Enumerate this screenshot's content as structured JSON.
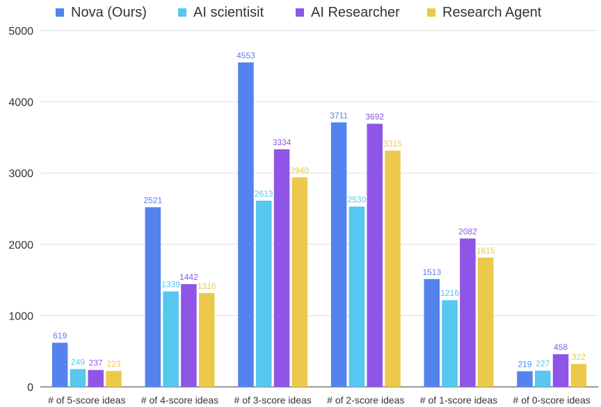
{
  "chart_data": {
    "type": "bar",
    "categories": [
      "# of 5-score ideas",
      "# of 4-score ideas",
      "# of 3-score ideas",
      "# of 2-score ideas",
      "# of 1-score ideas",
      "# of 0-score ideas"
    ],
    "series": [
      {
        "name": "Nova (Ours)",
        "color": "#5283ee",
        "values": [
          619,
          2521,
          4553,
          3711,
          1513,
          219
        ]
      },
      {
        "name": "AI scientisit",
        "color": "#56c7ee",
        "values": [
          249,
          1339,
          2613,
          2530,
          1216,
          227
        ]
      },
      {
        "name": "AI Researcher",
        "color": "#8e55e6",
        "values": [
          237,
          1442,
          3334,
          3692,
          2082,
          458
        ]
      },
      {
        "name": "Research Agent",
        "color": "#ecc94b",
        "values": [
          223,
          1316,
          2940,
          3315,
          1815,
          322
        ]
      }
    ],
    "ylim": [
      0,
      5000
    ],
    "yticks": [
      0,
      1000,
      2000,
      3000,
      4000,
      5000
    ],
    "grid": true,
    "legend_position": "top"
  }
}
